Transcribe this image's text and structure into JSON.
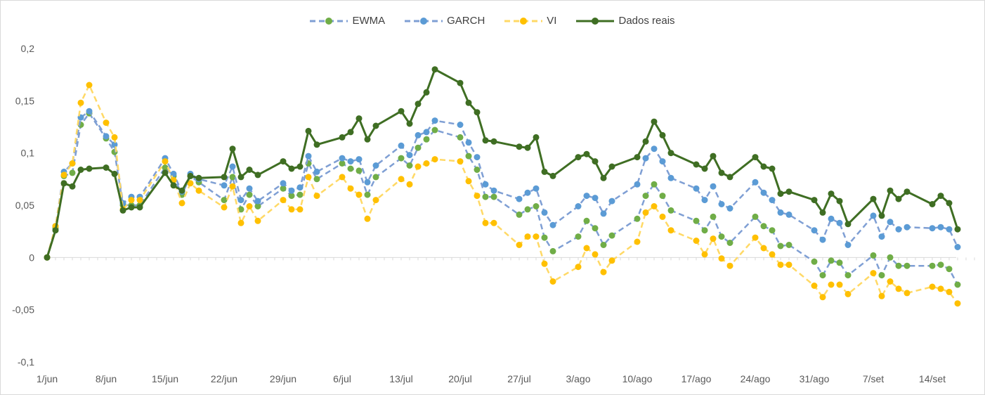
{
  "chart_data": {
    "type": "line",
    "ylim": [
      -0.1,
      0.2
    ],
    "y_ticks": [
      {
        "value": 0.2,
        "label": "0,2"
      },
      {
        "value": 0.15,
        "label": "0,15"
      },
      {
        "value": 0.1,
        "label": "0,1"
      },
      {
        "value": 0.05,
        "label": "0,05"
      },
      {
        "value": 0,
        "label": "0"
      },
      {
        "value": -0.05,
        "label": "-0,05"
      },
      {
        "value": -0.1,
        "label": "-0,1"
      }
    ],
    "x_ticks": [
      {
        "day": 0,
        "label": "1/jun"
      },
      {
        "day": 7,
        "label": "8/jun"
      },
      {
        "day": 14,
        "label": "15/jun"
      },
      {
        "day": 21,
        "label": "22/jun"
      },
      {
        "day": 28,
        "label": "29/jun"
      },
      {
        "day": 35,
        "label": "6/jul"
      },
      {
        "day": 42,
        "label": "13/jul"
      },
      {
        "day": 49,
        "label": "20/jul"
      },
      {
        "day": 56,
        "label": "27/jul"
      },
      {
        "day": 63,
        "label": "3/ago"
      },
      {
        "day": 70,
        "label": "10/ago"
      },
      {
        "day": 77,
        "label": "17/ago"
      },
      {
        "day": 84,
        "label": "24/ago"
      },
      {
        "day": 91,
        "label": "31/ago"
      },
      {
        "day": 98,
        "label": "7/set"
      },
      {
        "day": 105,
        "label": "14/set"
      }
    ],
    "x_range": [
      0,
      110
    ],
    "legend_position": "top",
    "grid": false,
    "x": [
      0,
      1,
      2,
      3,
      4,
      5,
      7,
      8,
      9,
      10,
      11,
      14,
      15,
      16,
      17,
      18,
      21,
      22,
      23,
      24,
      25,
      28,
      29,
      30,
      31,
      32,
      35,
      36,
      37,
      38,
      39,
      42,
      43,
      44,
      45,
      46,
      49,
      50,
      51,
      52,
      53,
      56,
      57,
      58,
      59,
      60,
      63,
      64,
      65,
      66,
      67,
      70,
      71,
      72,
      73,
      74,
      77,
      78,
      79,
      80,
      81,
      84,
      85,
      86,
      87,
      88,
      91,
      92,
      93,
      94,
      95,
      98,
      99,
      100,
      101,
      102,
      105,
      106,
      107,
      108
    ],
    "series": [
      {
        "name": "EWMA",
        "color": "#70ad47",
        "line_color": "#7f9fd4",
        "style": "dashed",
        "values": [
          0,
          0.028,
          0.078,
          0.081,
          0.127,
          0.138,
          0.114,
          0.101,
          0.05,
          0.05,
          0.05,
          0.086,
          0.078,
          0.06,
          0.078,
          0.072,
          0.055,
          0.077,
          0.046,
          0.06,
          0.049,
          0.066,
          0.059,
          0.06,
          0.09,
          0.075,
          0.09,
          0.085,
          0.083,
          0.06,
          0.077,
          0.095,
          0.088,
          0.105,
          0.113,
          0.122,
          0.115,
          0.097,
          0.084,
          0.058,
          0.058,
          0.041,
          0.046,
          0.049,
          0.019,
          0.006,
          0.02,
          0.035,
          0.028,
          0.012,
          0.021,
          0.037,
          0.059,
          0.07,
          0.059,
          0.045,
          0.035,
          0.026,
          0.039,
          0.02,
          0.014,
          0.039,
          0.03,
          0.026,
          0.011,
          0.012,
          -0.004,
          -0.017,
          -0.003,
          -0.005,
          -0.017,
          0.002,
          -0.017,
          0,
          -0.008,
          -0.008,
          -0.008,
          -0.007,
          -0.011,
          -0.026
        ]
      },
      {
        "name": "GARCH",
        "color": "#5b9bd5",
        "line_color": "#7f9fd4",
        "style": "dashed",
        "values": [
          0,
          0.03,
          0.082,
          0.09,
          0.134,
          0.14,
          0.116,
          0.108,
          0.052,
          0.058,
          0.058,
          0.095,
          0.08,
          0.063,
          0.08,
          0.075,
          0.069,
          0.087,
          0.055,
          0.066,
          0.054,
          0.071,
          0.064,
          0.067,
          0.097,
          0.082,
          0.095,
          0.092,
          0.094,
          0.072,
          0.088,
          0.107,
          0.098,
          0.117,
          0.12,
          0.131,
          0.127,
          0.11,
          0.096,
          0.07,
          0.064,
          0.056,
          0.062,
          0.066,
          0.043,
          0.031,
          0.049,
          0.059,
          0.057,
          0.042,
          0.054,
          0.07,
          0.095,
          0.104,
          0.092,
          0.076,
          0.066,
          0.055,
          0.068,
          0.051,
          0.047,
          0.072,
          0.062,
          0.055,
          0.043,
          0.041,
          0.026,
          0.017,
          0.037,
          0.033,
          0.012,
          0.04,
          0.02,
          0.034,
          0.027,
          0.029,
          0.028,
          0.029,
          0.027,
          0.01
        ]
      },
      {
        "name": "VI",
        "color": "#ffc000",
        "line_color": "#ffd966",
        "style": "dashed",
        "values": [
          0,
          0.03,
          0.079,
          0.09,
          0.148,
          0.165,
          0.129,
          0.115,
          0.046,
          0.055,
          0.055,
          0.092,
          0.074,
          0.052,
          0.071,
          0.064,
          0.048,
          0.068,
          0.033,
          0.049,
          0.035,
          0.055,
          0.046,
          0.046,
          0.077,
          0.059,
          0.077,
          0.066,
          0.06,
          0.037,
          0.055,
          0.075,
          0.07,
          0.087,
          0.09,
          0.094,
          0.092,
          0.073,
          0.059,
          0.033,
          0.033,
          0.012,
          0.02,
          0.02,
          -0.006,
          -0.023,
          -0.009,
          0.009,
          0.003,
          -0.014,
          -0.003,
          0.015,
          0.043,
          0.049,
          0.039,
          0.026,
          0.016,
          0.003,
          0.018,
          -0.001,
          -0.008,
          0.019,
          0.009,
          0.003,
          -0.007,
          -0.007,
          -0.027,
          -0.038,
          -0.026,
          -0.026,
          -0.035,
          -0.015,
          -0.037,
          -0.023,
          -0.03,
          -0.034,
          -0.028,
          -0.03,
          -0.033,
          -0.044
        ]
      },
      {
        "name": "Dados reais",
        "color": "#3f6e23",
        "line_color": "#3f6e23",
        "style": "solid",
        "values": [
          0,
          0.026,
          0.071,
          0.068,
          0.084,
          0.085,
          0.086,
          0.08,
          0.045,
          0.048,
          0.048,
          0.081,
          0.069,
          0.064,
          0.078,
          0.076,
          0.077,
          0.104,
          0.077,
          0.084,
          0.079,
          0.092,
          0.085,
          0.087,
          0.121,
          0.108,
          0.115,
          0.12,
          0.133,
          0.113,
          0.126,
          0.14,
          0.128,
          0.147,
          0.158,
          0.18,
          0.167,
          0.148,
          0.139,
          0.112,
          0.111,
          0.106,
          0.105,
          0.115,
          0.082,
          0.078,
          0.096,
          0.099,
          0.092,
          0.076,
          0.087,
          0.096,
          0.111,
          0.13,
          0.117,
          0.1,
          0.089,
          0.085,
          0.097,
          0.081,
          0.077,
          0.096,
          0.087,
          0.085,
          0.061,
          0.063,
          0.055,
          0.043,
          0.061,
          0.054,
          0.032,
          0.056,
          0.04,
          0.064,
          0.056,
          0.063,
          0.051,
          0.059,
          0.052,
          0.027
        ]
      }
    ]
  }
}
